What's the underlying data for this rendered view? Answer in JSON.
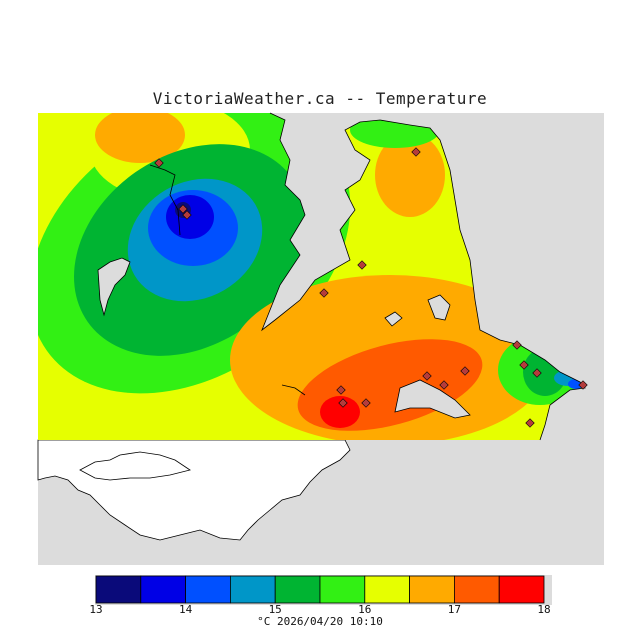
{
  "title": "VictoriaWeather.ca -- Temperature",
  "legend": {
    "ticks": [
      "13",
      "14",
      "15",
      "16",
      "17",
      "18"
    ],
    "bins": [
      {
        "range": "13-13.5",
        "color": "#0a0a7a"
      },
      {
        "range": "13.5-14",
        "color": "#0000e6"
      },
      {
        "range": "14-14.5",
        "color": "#0050ff"
      },
      {
        "range": "14.5-15",
        "color": "#0096c8"
      },
      {
        "range": "15-15.5",
        "color": "#00b432"
      },
      {
        "range": "15.5-16",
        "color": "#32f014"
      },
      {
        "range": "16-16.5",
        "color": "#e6ff00"
      },
      {
        "range": "16.5-17",
        "color": "#ffaa00"
      },
      {
        "range": "17-17.5",
        "color": "#ff5a00"
      },
      {
        "range": "17.5-18",
        "color": "#ff0000"
      }
    ],
    "caption": "°C  2026/04/20 10:10"
  },
  "colors": {
    "background_land_outside": "#dcdcdc",
    "water": "#ffffff",
    "coastline": "#000000",
    "station_marker": "#b43c3c"
  }
}
